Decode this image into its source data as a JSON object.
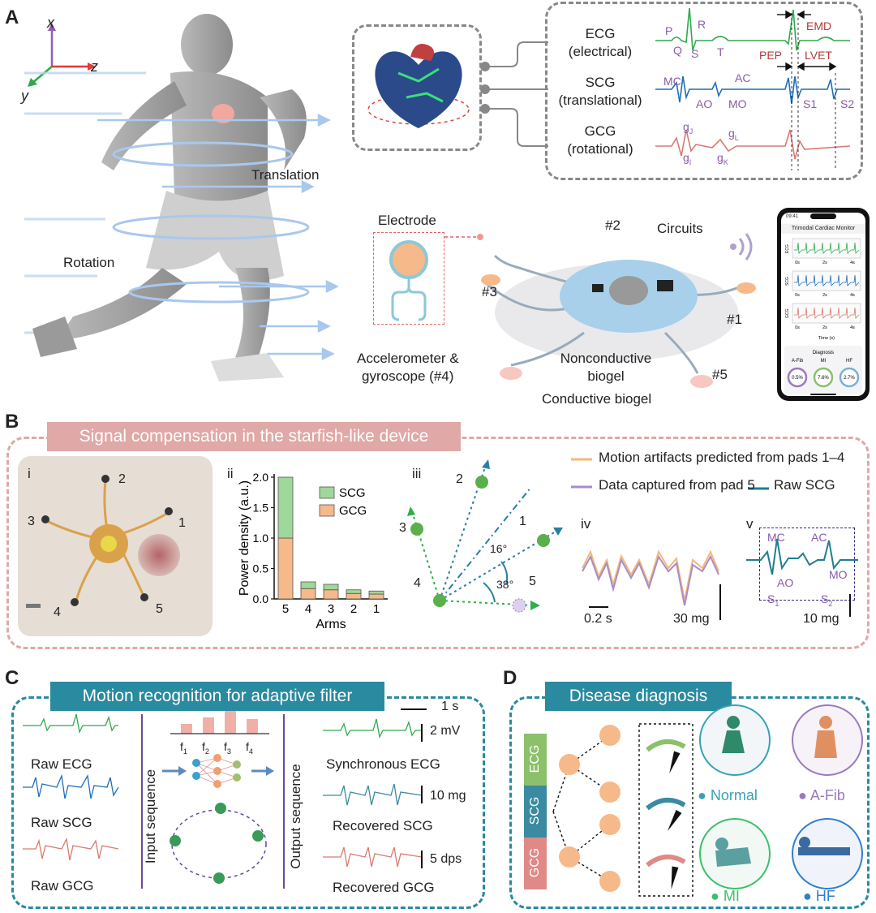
{
  "panel_labels": {
    "a": "A",
    "b": "B",
    "c": "C",
    "d": "D"
  },
  "panel_a": {
    "axes": {
      "x": "x",
      "y": "y",
      "z": "z"
    },
    "motion_labels": {
      "translation": "Translation",
      "rotation": "Rotation"
    },
    "signals": [
      {
        "name": "ECG",
        "type": "(electrical)",
        "color": "#2eaa4c"
      },
      {
        "name": "SCG",
        "type": "(translational)",
        "color": "#1f6fb8"
      },
      {
        "name": "GCG",
        "type": "(rotational)",
        "color": "#d97a6e"
      }
    ],
    "ecg_points": {
      "p": "P",
      "q": "Q",
      "r": "R",
      "s": "S",
      "t": "T"
    },
    "intervals": {
      "emd": "EMD",
      "pep": "PEP",
      "lvet": "LVET"
    },
    "scg_points": {
      "mc": "MC",
      "ao": "AO",
      "ac": "AC",
      "mo": "MO",
      "s1": "S1",
      "s2": "S2"
    },
    "gcg_points": {
      "gj": "g",
      "gj_sub": "J",
      "gl": "g",
      "gl_sub": "L",
      "gi": "g",
      "gi_sub": "I",
      "gk": "g",
      "gk_sub": "K"
    },
    "device_labels": {
      "electrode": "Electrode",
      "circuits": "Circuits",
      "arm1": "#1",
      "arm2": "#2",
      "arm3": "#3",
      "arm5": "#5",
      "accel": "Accelerometer &",
      "accel2": "gyroscope (#4)",
      "nonconductive": "Nonconductive",
      "nonconductive2": "biogel",
      "conductive": "Conductive biogel"
    },
    "phone": {
      "time": "09:41",
      "title": "Trimodal Cardiac Monitor",
      "charts": [
        {
          "label": "ECG",
          "color": "#2eaa4c"
        },
        {
          "label": "SCG",
          "color": "#1f6fb8"
        },
        {
          "label": "GCG",
          "color": "#d97a6e"
        }
      ],
      "ticks": [
        "0s",
        "2s",
        "4s"
      ],
      "xaxis": "Time (s)",
      "diagnosis_title": "Diagnosis",
      "diagnoses": [
        {
          "name": "A-Fib",
          "value": "0.5%",
          "color": "#9a7ac0"
        },
        {
          "name": "MI",
          "value": "7.6%",
          "color": "#8cc06a"
        },
        {
          "name": "HF",
          "value": "2.7%",
          "color": "#7ab0d8"
        }
      ]
    }
  },
  "panel_b": {
    "banner": "Signal compensation in the starfish-like device",
    "sub_i": "i",
    "sub_ii": "ii",
    "sub_iii": "iii",
    "sub_iv": "iv",
    "sub_v": "v",
    "photo_arms": [
      "1",
      "2",
      "3",
      "4",
      "5"
    ],
    "bar_legend": {
      "scg": "SCG",
      "gcg": "GCG"
    },
    "legend_lines": [
      {
        "label": "Motion artifacts predicted from pads 1–4",
        "color": "#f5b87a"
      },
      {
        "label": "Data captured from pad 5",
        "color": "#a88cc8"
      },
      {
        "label": "Raw SCG",
        "color": "#1f7f8f"
      }
    ],
    "angles": {
      "a16": "16°",
      "a38": "38°"
    },
    "vector_labels": [
      "1",
      "2",
      "3",
      "4",
      "5"
    ],
    "scale_iv": {
      "time": "0.2 s",
      "amp": "30 mg"
    },
    "scale_v": {
      "amp": "10 mg"
    },
    "v_points": {
      "mc": "MC",
      "ac": "AC",
      "ao": "AO",
      "mo": "MO",
      "s1": "S",
      "s1_sub": "1",
      "s2": "S",
      "s2_sub": "2"
    }
  },
  "chart_data": {
    "type": "bar",
    "stacked": true,
    "categories": [
      "5",
      "4",
      "3",
      "2",
      "1"
    ],
    "series": [
      {
        "name": "GCG",
        "values": [
          1.0,
          0.17,
          0.15,
          0.09,
          0.08
        ],
        "color": "#f6b98a"
      },
      {
        "name": "SCG",
        "values": [
          1.0,
          0.11,
          0.09,
          0.06,
          0.05
        ],
        "color": "#9fd89a"
      }
    ],
    "xlabel": "Arms",
    "ylabel": "Power density (a.u.)",
    "ylim": [
      0,
      2.0
    ],
    "yticks": [
      "0.0",
      "0.5",
      "1.0",
      "1.5",
      "2.0"
    ],
    "legend": "top-right"
  },
  "panel_c": {
    "banner": "Motion recognition for adaptive filter",
    "inputs": [
      "Raw ECG",
      "Raw SCG",
      "Raw GCG"
    ],
    "outputs": [
      "Synchronous ECG",
      "Recovered SCG",
      "Recovered GCG"
    ],
    "input_seq": "Input sequence",
    "output_seq": "Output sequence",
    "freqs": [
      {
        "f": "f",
        "sub": "1"
      },
      {
        "f": "f",
        "sub": "2"
      },
      {
        "f": "f",
        "sub": "3"
      },
      {
        "f": "f",
        "sub": "4"
      }
    ],
    "scales": {
      "time": "1 s",
      "ecg": "2 mV",
      "scg": "10 mg",
      "gcg": "5 dps"
    }
  },
  "panel_d": {
    "banner": "Disease diagnosis",
    "modalities": [
      {
        "label": "ECG",
        "color": "#8cc06a"
      },
      {
        "label": "SCG",
        "color": "#3a8aa0"
      },
      {
        "label": "GCG",
        "color": "#e08a88"
      }
    ],
    "classes": [
      {
        "label": "Normal",
        "color": "#3aa0b8"
      },
      {
        "label": "A-Fib",
        "color": "#9a7ac0"
      },
      {
        "label": "MI",
        "color": "#3ac06a"
      },
      {
        "label": "HF",
        "color": "#2f7fd0"
      }
    ]
  }
}
